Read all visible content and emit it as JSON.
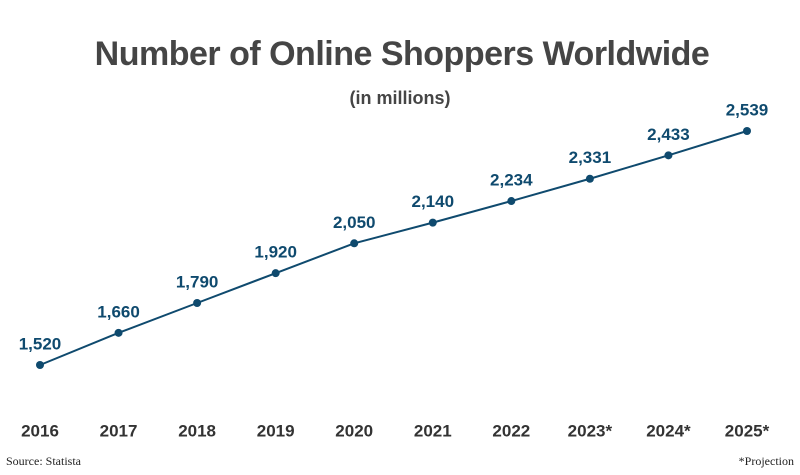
{
  "chart_data": {
    "type": "line",
    "title": "Number of Online Shoppers Worldwide",
    "subtitle": "(in millions)",
    "categories": [
      "2016",
      "2017",
      "2018",
      "2019",
      "2020",
      "2021",
      "2022",
      "2023*",
      "2024*",
      "2025*"
    ],
    "values": [
      1520,
      1660,
      1790,
      1920,
      2050,
      2140,
      2234,
      2331,
      2433,
      2539
    ],
    "value_labels": [
      "1,520",
      "1,660",
      "1,790",
      "1,920",
      "2,050",
      "2,140",
      "2,234",
      "2,331",
      "2,433",
      "2,539"
    ],
    "color": "#0f4a6e",
    "source": "Source: Statista",
    "note": "*Projection"
  }
}
